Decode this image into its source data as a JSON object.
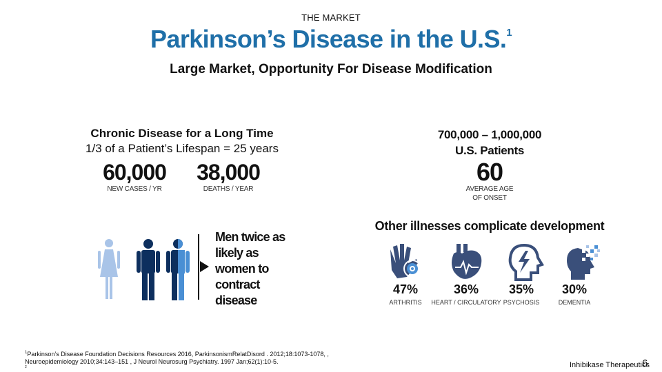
{
  "header": {
    "section": "THE MARKET",
    "title": "Parkinson’s Disease in the U.S.",
    "title_sup": "1",
    "subtitle": "Large Market, Opportunity For Disease Modification"
  },
  "left": {
    "heading": "Chronic Disease for a Long Time",
    "subheading": "1/3 of a Patient’s Lifespan = 25 years",
    "stats": [
      {
        "value": "60,000",
        "label": "NEW CASES / YR"
      },
      {
        "value": "38,000",
        "label": "DEATHS / YEAR"
      }
    ],
    "gender_text": "Men twice as likely as women to contract disease"
  },
  "right": {
    "heading_line1": "700,000 – 1,000,000",
    "heading_line2": "U.S. Patients",
    "stat": {
      "value": "60",
      "label_line1": "AVERAGE AGE",
      "label_line2": "OF ONSET"
    }
  },
  "illnesses": {
    "heading": "Other illnesses complicate development",
    "items": [
      {
        "pct": "47%",
        "label": "ARTHRITIS",
        "icon": "hand-icon"
      },
      {
        "pct": "36%",
        "label": "HEART / CIRCULATORY",
        "icon": "heart-icon"
      },
      {
        "pct": "35%",
        "label": "PSYCHOSIS",
        "icon": "head-lightning-icon"
      },
      {
        "pct": "30%",
        "label": "DEMENTIA",
        "icon": "head-pixel-icon"
      }
    ]
  },
  "colors": {
    "title_blue": "#1f6fa8",
    "icon_navy": "#3a4f7a",
    "men_navy": "#0d2f5e",
    "woman_blue": "#a9c4e8",
    "accent_blue": "#4a8fd4"
  },
  "footer": {
    "footnote_sup": "1",
    "footnote_line1": "Parkinson’s Disease Foundation Decisions Resources 2016, ParkinsonismRelatDisord . 2012;18:1073-1078, ,",
    "footnote_line2": "Neuroepidemiology 2010;34:143–151 , J Neurol Neurosurg Psychiatry. 1997 Jan;62(1):10-5.",
    "footnote_line3": "2",
    "brand": "Inhibikase Therapeutics",
    "page_number": "6"
  }
}
